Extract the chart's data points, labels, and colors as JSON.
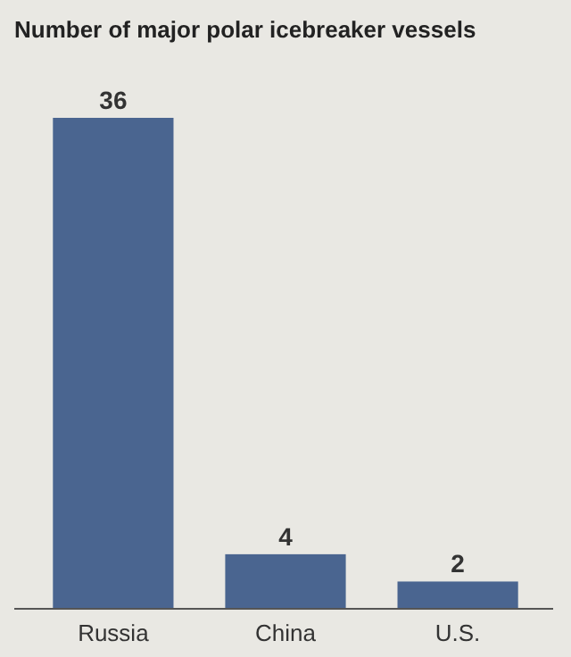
{
  "chart_data": {
    "type": "bar",
    "title": "Number of major polar icebreaker vessels",
    "categories": [
      "Russia",
      "China",
      "U.S."
    ],
    "values": [
      36,
      4,
      2
    ],
    "color": "#4a6590",
    "data_labels": true
  }
}
